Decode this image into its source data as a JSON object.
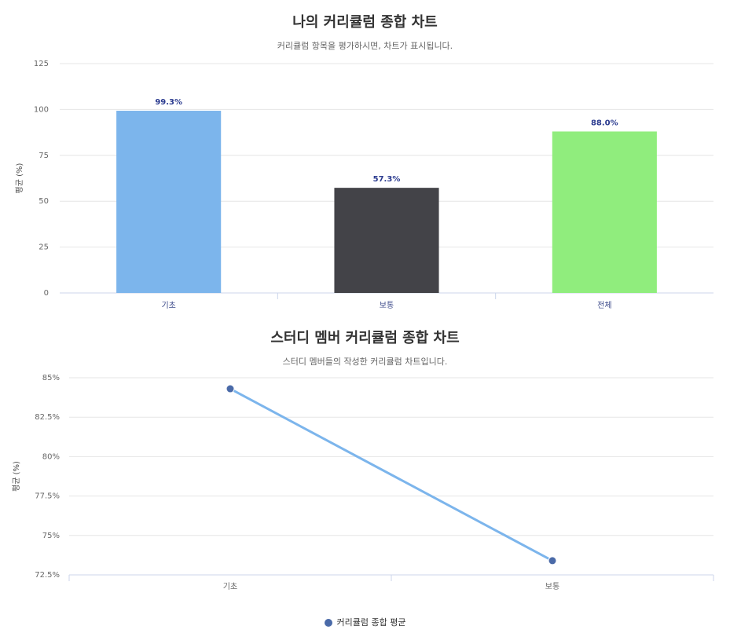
{
  "chart_data": [
    {
      "type": "bar",
      "title": "나의 커리큘럼 종합 차트",
      "subtitle": "커리큘럼 항목을 평가하시면, 차트가 표시됩니다.",
      "ylabel": "평균 (%)",
      "xlabel": "",
      "ylim": [
        0,
        125
      ],
      "yticks": [
        "0",
        "25",
        "50",
        "75",
        "100",
        "125"
      ],
      "categories": [
        "기초",
        "보통",
        "전체"
      ],
      "values": [
        99.3,
        57.3,
        88.0
      ],
      "data_labels": [
        "99.3%",
        "57.3%",
        "88.0%"
      ],
      "colors": [
        "#7cb5ec",
        "#434348",
        "#90ed7d"
      ],
      "grid": true,
      "legend": false
    },
    {
      "type": "line",
      "title": "스터디 멤버 커리큘럼 종합 차트",
      "subtitle": "스터디 멤버들의 작성한 커리큘럼 차트입니다.",
      "ylabel": "평균 (%)",
      "xlabel": "",
      "ylim": [
        72.5,
        85
      ],
      "yticks": [
        "72.5%",
        "75%",
        "77.5%",
        "80%",
        "82.5%",
        "85%"
      ],
      "categories": [
        "기초",
        "보통"
      ],
      "series": [
        {
          "name": "커리큘럼 종합 평균",
          "values": [
            84.3,
            73.4
          ],
          "color": "#7cb5ec",
          "marker_color": "#4a6aa8"
        }
      ],
      "grid": true,
      "legend": "bottom-center"
    }
  ]
}
